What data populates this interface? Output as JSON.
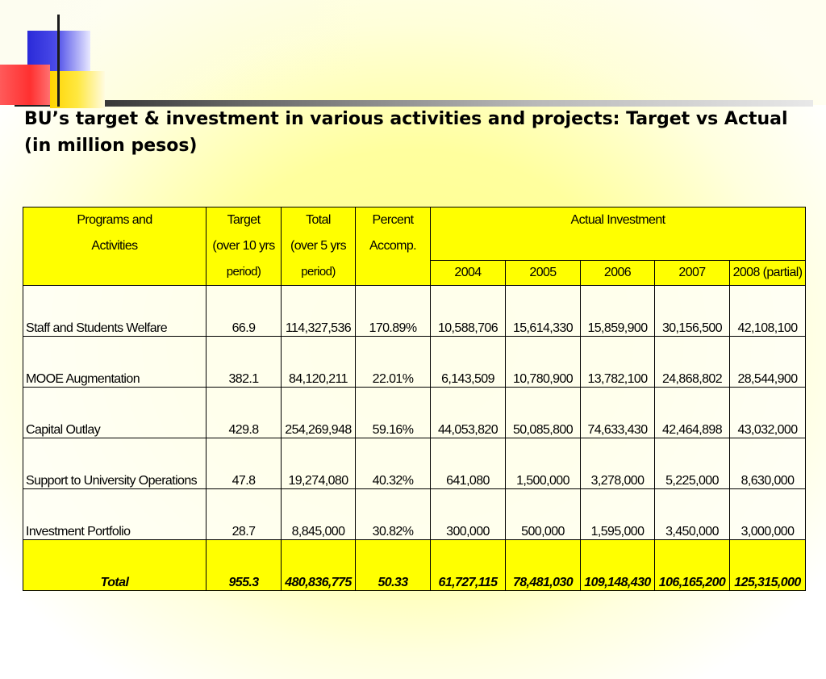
{
  "title": "BU’s target & investment in various activities and projects: Target vs Actual (in million pesos)",
  "headers": {
    "program_line1": "Programs and",
    "program_line2": "Activities",
    "target_line1": "Target",
    "target_line2": "(over 10 yrs",
    "target_line3": "period)",
    "total_line1": "Total",
    "total_line2": "(over 5 yrs",
    "total_line3": "period)",
    "percent_line1": "Percent",
    "percent_line2": "Accomp.",
    "actual": "Actual Investment",
    "years": [
      "2004",
      "2005",
      "2006",
      "2007",
      "2008 (partial)"
    ]
  },
  "rows": [
    {
      "program": "Staff and Students Welfare",
      "target": "66.9",
      "total": "114,327,536",
      "percent": "170.89%",
      "y2004": "10,588,706",
      "y2005": "15,614,330",
      "y2006": "15,859,900",
      "y2007": "30,156,500",
      "y2008": "42,108,100"
    },
    {
      "program": "MOOE Augmentation",
      "target": "382.1",
      "total": "84,120,211",
      "percent": "22.01%",
      "y2004": "6,143,509",
      "y2005": "10,780,900",
      "y2006": "13,782,100",
      "y2007": "24,868,802",
      "y2008": "28,544,900"
    },
    {
      "program": "Capital Outlay",
      "target": "429.8",
      "total": "254,269,948",
      "percent": "59.16%",
      "y2004": "44,053,820",
      "y2005": "50,085,800",
      "y2006": "74,633,430",
      "y2007": "42,464,898",
      "y2008": "43,032,000"
    },
    {
      "program": "Support to University Operations",
      "target": "47.8",
      "total": "19,274,080",
      "percent": "40.32%",
      "y2004": "641,080",
      "y2005": "1,500,000",
      "y2006": "3,278,000",
      "y2007": "5,225,000",
      "y2008": "8,630,000"
    },
    {
      "program": "Investment Portfolio",
      "target": "28.7",
      "total": "8,845,000",
      "percent": "30.82%",
      "y2004": "300,000",
      "y2005": "500,000",
      "y2006": "1,595,000",
      "y2007": "3,450,000",
      "y2008": "3,000,000"
    }
  ],
  "total": {
    "program": "Total",
    "target": "955.3",
    "total": "480,836,775",
    "percent": "50.33",
    "y2004": "61,727,115",
    "y2005": "78,481,030",
    "y2006": "109,148,430",
    "y2007": "106,165,200",
    "y2008": "125,315,000"
  },
  "colors": {
    "header_bg": "#ffff00",
    "page_glow": "#ffff8a"
  }
}
